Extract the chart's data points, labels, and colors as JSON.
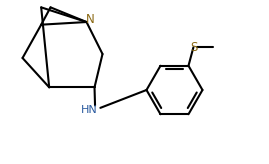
{
  "background_color": "#ffffff",
  "line_color": "#000000",
  "N_color": "#8b6914",
  "S_color": "#8b6914",
  "NH_color": "#2a5a9f",
  "line_width": 1.5,
  "figsize": [
    2.69,
    1.64
  ],
  "dpi": 100,
  "xlim": [
    0,
    10
  ],
  "ylim": [
    0,
    6.1
  ]
}
